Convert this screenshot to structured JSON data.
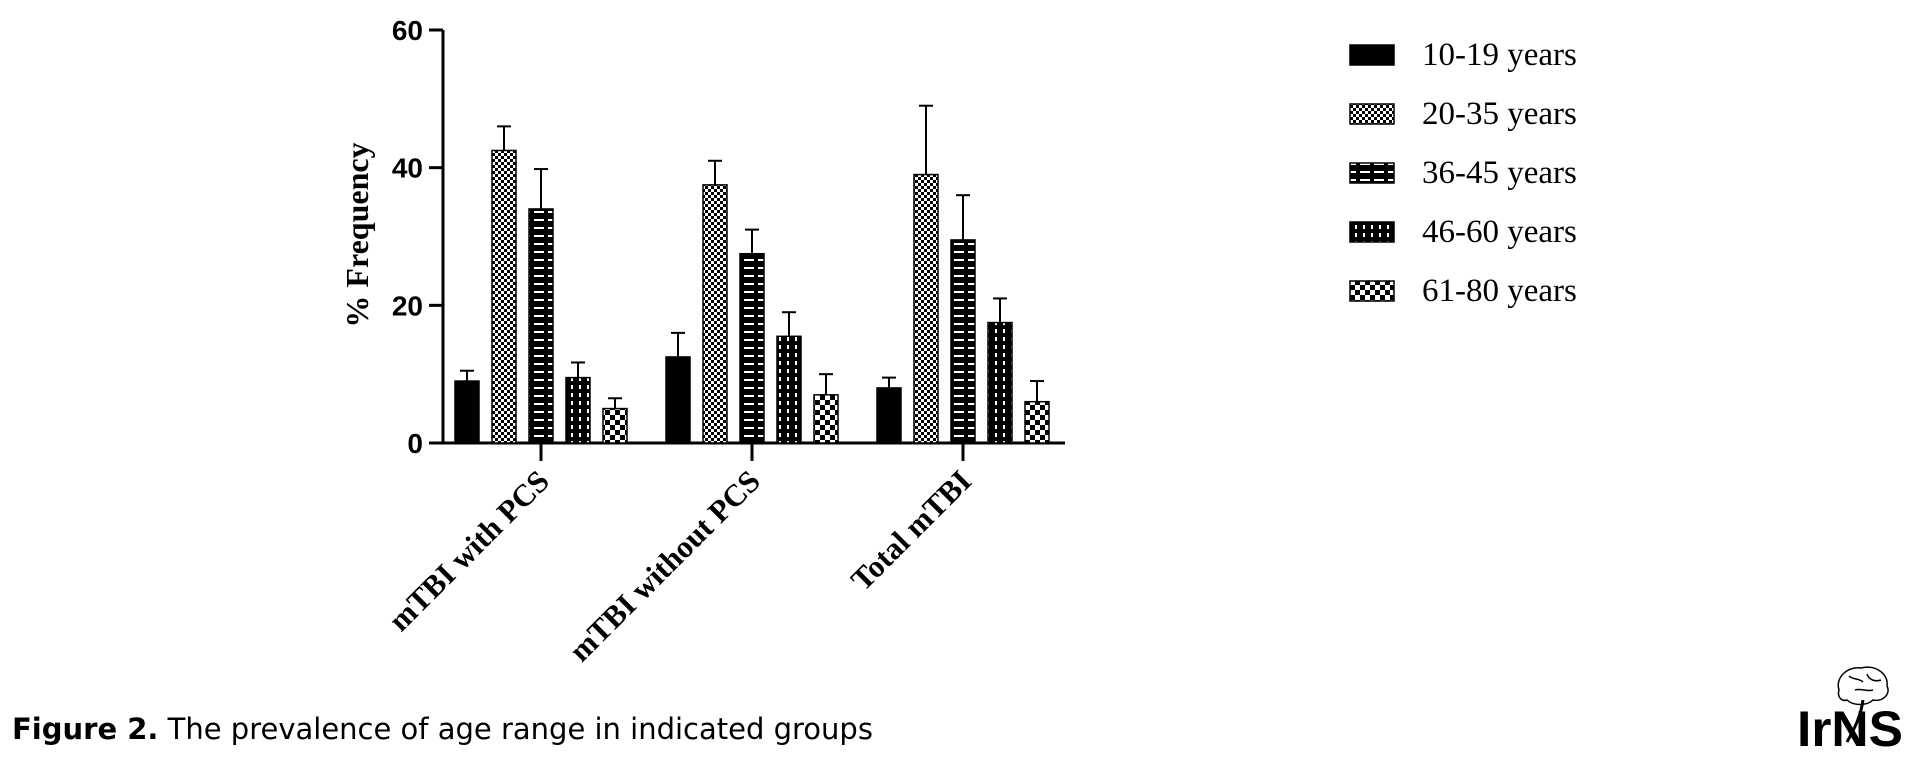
{
  "caption": {
    "label": "Figure 2.",
    "text": "The prevalence of age range in indicated groups"
  },
  "logo": {
    "text": "IrNS"
  },
  "chart_data": {
    "type": "bar",
    "title": "",
    "xlabel": "",
    "ylabel": "% Frequency",
    "ylim": [
      0,
      60
    ],
    "yticks": [
      0,
      20,
      40,
      60
    ],
    "categories": [
      "mTBI with PCS",
      "mTBI without PCS",
      "Total mTBI"
    ],
    "legend_position": "top-right",
    "grid": false,
    "series": [
      {
        "name": "10-19 years",
        "pattern": "solid",
        "values": [
          9,
          12.5,
          8
        ],
        "errors": [
          1.5,
          3.5,
          1.5
        ]
      },
      {
        "name": "20-35 years",
        "pattern": "checker",
        "values": [
          42.5,
          37.5,
          39
        ],
        "errors": [
          3.5,
          3.5,
          10
        ]
      },
      {
        "name": "36-45 years",
        "pattern": "hlines",
        "values": [
          34,
          27.5,
          29.5
        ],
        "errors": [
          5.8,
          3.5,
          6.5
        ]
      },
      {
        "name": "46-60 years",
        "pattern": "vdash",
        "values": [
          9.5,
          15.5,
          17.5
        ],
        "errors": [
          2.2,
          3.5,
          3.5
        ]
      },
      {
        "name": "61-80 years",
        "pattern": "zigzag",
        "values": [
          5,
          7,
          6
        ],
        "errors": [
          1.5,
          3,
          3
        ]
      }
    ],
    "colors": {
      "fill": "#000000",
      "pattern": "#ffffff"
    }
  }
}
